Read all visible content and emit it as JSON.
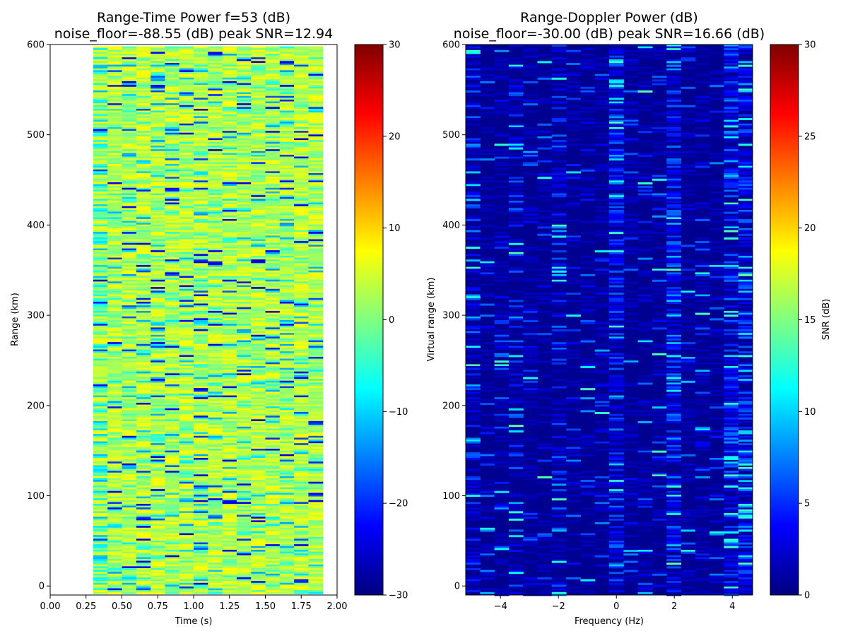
{
  "chart_data": [
    {
      "type": "heatmap",
      "title_line1": "Range-Time Power f=53 (dB)",
      "title_line2": "noise_floor=-88.55 (dB) peak SNR=12.94",
      "xlabel": "Time (s)",
      "ylabel": "Range (km)",
      "xlim": [
        0.0,
        2.0
      ],
      "ylim": [
        -10,
        600
      ],
      "x_ticks": [
        "0.00",
        "0.25",
        "0.50",
        "0.75",
        "1.00",
        "1.25",
        "1.50",
        "1.75",
        "2.00"
      ],
      "x_tick_values": [
        0.0,
        0.25,
        0.5,
        0.75,
        1.0,
        1.25,
        1.5,
        1.75,
        2.0
      ],
      "y_ticks": [
        "0",
        "100",
        "200",
        "300",
        "400",
        "500",
        "600"
      ],
      "y_tick_values": [
        0,
        100,
        200,
        300,
        400,
        500,
        600
      ],
      "data_extent": {
        "x": [
          0.3,
          1.9
        ],
        "y": [
          -7,
          598
        ]
      },
      "colormap": "jet",
      "colorbar": {
        "label": "",
        "range": [
          -30,
          30
        ],
        "ticks": [
          "30",
          "20",
          "10",
          "0",
          "−10",
          "−20",
          "−30"
        ],
        "tick_values": [
          30,
          20,
          10,
          0,
          -10,
          -20,
          -30
        ]
      },
      "description": "Noisy range-time power dominated by values around 0 to 8 dB, with sparse blue streaks near -20 dB."
    },
    {
      "type": "heatmap",
      "title_line1": "Range-Doppler Power (dB)",
      "title_line2": "noise_floor=-30.00 (dB) peak SNR=16.66 (dB)",
      "xlabel": "Frequency (Hz)",
      "ylabel": "Virtual range (km)",
      "xlim": [
        -5.2,
        4.7
      ],
      "ylim": [
        -10,
        600
      ],
      "x_ticks": [
        "−4",
        "−2",
        "0",
        "2",
        "4"
      ],
      "x_tick_values": [
        -4,
        -2,
        0,
        2,
        4
      ],
      "y_ticks": [
        "0",
        "100",
        "200",
        "300",
        "400",
        "500",
        "600"
      ],
      "y_tick_values": [
        0,
        100,
        200,
        300,
        400,
        500,
        600
      ],
      "colormap": "jet",
      "colorbar": {
        "label": "SNR (dB)",
        "range": [
          0,
          30
        ],
        "ticks": [
          "30",
          "25",
          "20",
          "15",
          "10",
          "5",
          "0"
        ],
        "tick_values": [
          30,
          25,
          20,
          15,
          10,
          5,
          0
        ]
      },
      "description": "Mostly dark blue (0-3 dB SNR) with brighter streaks concentrated near 0 Hz, 2 Hz and 4 Hz columns."
    }
  ]
}
